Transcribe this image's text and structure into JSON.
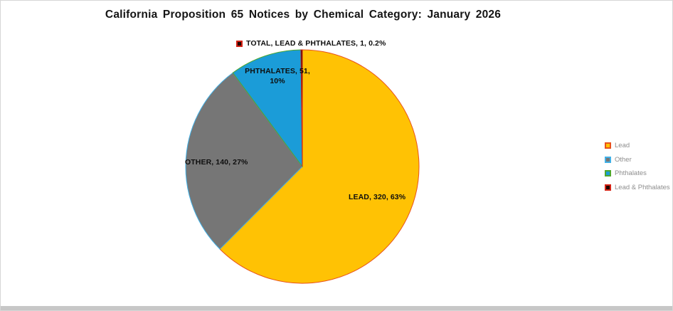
{
  "title": "California Proposition 65 Notices by Chemical Category: January 2026",
  "chart_data": {
    "type": "pie",
    "title": "California Proposition 65 Notices by Chemical Category: January 2026",
    "start_angle_deg": 0,
    "direction": "clockwise",
    "legend_position": "right",
    "slices": [
      {
        "name": "Lead",
        "value": 320,
        "percent": "63%",
        "data_label": "LEAD, 320, 63%",
        "fill": "#FFC204",
        "stroke": "#E8521D"
      },
      {
        "name": "Other",
        "value": 140,
        "percent": "27%",
        "data_label": "OTHER, 140, 27%",
        "fill": "#767676",
        "stroke": "#41B0E6"
      },
      {
        "name": "Phthalates",
        "value": 51,
        "percent": "10%",
        "data_label": "PHTHALATES, 51, 10%",
        "fill": "#1B9CD8",
        "stroke": "#4EA72E"
      },
      {
        "name": "Lead & Phthalates",
        "value": 1,
        "percent": "0.2%",
        "data_label": "TOTAL, LEAD & PHTHALATES, 1, 0.2%",
        "fill": "#200502",
        "stroke": "#D42315"
      }
    ]
  },
  "legend": {
    "text_color": "#8E8E8E"
  }
}
